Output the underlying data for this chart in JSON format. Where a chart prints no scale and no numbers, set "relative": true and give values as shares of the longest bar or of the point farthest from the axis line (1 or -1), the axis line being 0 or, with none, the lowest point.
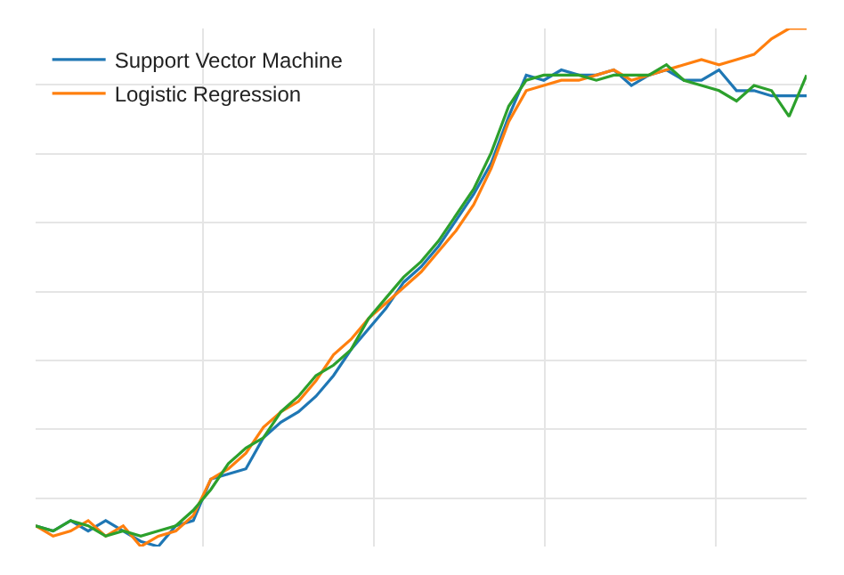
{
  "chart_data": {
    "type": "line",
    "relative": true,
    "grid": true,
    "legend": "top left",
    "marker": "none",
    "line_style": "solid",
    "categories": [
      null,
      null,
      null,
      null,
      null,
      null,
      null,
      null,
      null,
      null,
      null,
      null,
      null,
      null,
      null,
      null,
      null,
      null,
      null,
      null,
      null,
      null,
      null,
      null,
      null,
      null,
      null,
      null,
      null,
      null,
      null,
      null,
      null,
      null,
      null,
      null,
      null,
      null,
      null,
      null,
      null,
      null,
      null,
      null,
      null
    ],
    "series": [
      {
        "name": "Support Vector Machine",
        "color": "#1f77b4",
        "values": [
          0.04,
          0.03,
          0.05,
          0.03,
          0.05,
          0.03,
          0.01,
          0,
          0.04,
          0.05,
          0.13,
          0.14,
          0.15,
          0.21,
          0.24,
          0.26,
          0.29,
          0.33,
          0.38,
          0.42,
          0.46,
          0.51,
          0.54,
          0.58,
          0.63,
          0.68,
          0.74,
          0.83,
          0.91,
          0.9,
          0.92,
          0.91,
          0.91,
          0.92,
          0.89,
          0.91,
          0.92,
          0.9,
          0.9,
          0.92,
          0.88,
          0.88,
          0.87,
          0.87,
          0.87
        ]
      },
      {
        "name": "Logistic Regression",
        "color": "#ff7f0e",
        "values": [
          0.04,
          0.02,
          0.03,
          0.05,
          0.02,
          0.04,
          0.0,
          0.02,
          0.03,
          0.06,
          0.13,
          0.15,
          0.18,
          0.23,
          0.26,
          0.28,
          0.32,
          0.37,
          0.4,
          0.44,
          0.47,
          0.5,
          0.53,
          0.57,
          0.61,
          0.66,
          0.73,
          0.82,
          0.88,
          0.89,
          0.9,
          0.9,
          0.91,
          0.92,
          0.9,
          0.91,
          0.92,
          0.93,
          0.94,
          0.93,
          0.94,
          0.95,
          0.98,
          1,
          1.0
        ]
      },
      {
        "color": "#2ca02c",
        "values": [
          0.04,
          0.03,
          0.05,
          0.04,
          0.02,
          0.03,
          0.02,
          0.03,
          0.04,
          0.07,
          0.11,
          0.16,
          0.19,
          0.21,
          0.26,
          0.29,
          0.33,
          0.35,
          0.38,
          0.44,
          0.48,
          0.52,
          0.55,
          0.59,
          0.64,
          0.69,
          0.76,
          0.85,
          0.9,
          0.91,
          0.91,
          0.91,
          0.9,
          0.91,
          0.91,
          0.91,
          0.93,
          0.9,
          0.89,
          0.88,
          0.86,
          0.89,
          0.88,
          0.83,
          0.91
        ]
      }
    ]
  }
}
